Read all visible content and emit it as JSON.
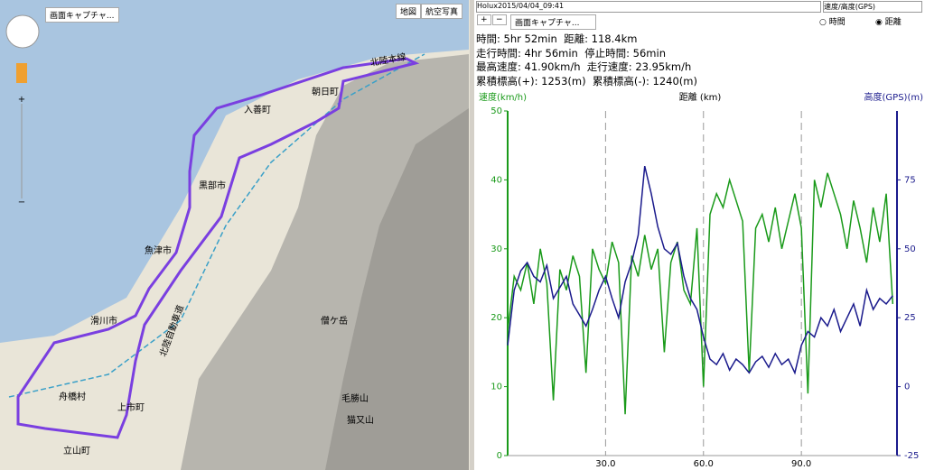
{
  "map": {
    "capture_button": "画面キャプチャ...",
    "map_button": "地図",
    "aerial_button": "航空写真",
    "zoom_in": "+",
    "zoom_out": "−",
    "places": [
      "入善町",
      "朝日町",
      "黒部市",
      "魚津市",
      "滑川市",
      "舟橋村",
      "上市町",
      "立山町",
      "僧ケ岳",
      "毛勝山",
      "猫又山",
      "北陸自動車道",
      "北陸本線"
    ]
  },
  "panel": {
    "file": "Holux2015/04/04_09:41",
    "mode": "速度/高度(GPS)",
    "plus": "+",
    "minus": "−",
    "capture_button": "画面キャプチャ...",
    "radio_time": "時間",
    "radio_distance": "距離",
    "stats": [
      "時間: 5hr 52min  距離: 118.4km",
      "走行時間: 4hr 56min  停止時間: 56min",
      "最高速度: 41.90km/h  走行速度: 23.95km/h",
      "累積標高(+): 1253(m)  累積標高(-): 1240(m)"
    ]
  },
  "chart_data": {
    "type": "line",
    "x_label": "距離 (km)",
    "y_label": "速度(km/h)",
    "y2_label": "高度(GPS)(m)",
    "x": [
      0,
      2,
      4,
      6,
      8,
      10,
      12,
      14,
      16,
      18,
      20,
      22,
      24,
      26,
      28,
      30,
      32,
      34,
      36,
      38,
      40,
      42,
      44,
      46,
      48,
      50,
      52,
      54,
      56,
      58,
      60,
      62,
      64,
      66,
      68,
      70,
      72,
      74,
      76,
      78,
      80,
      82,
      84,
      86,
      88,
      90,
      92,
      94,
      96,
      98,
      100,
      102,
      104,
      106,
      108,
      110,
      112,
      114,
      116,
      118
    ],
    "xlim": [
      0,
      119.3
    ],
    "xticks": [
      {
        "value": 30,
        "label": "30.0"
      },
      {
        "value": 60,
        "label": "60.0"
      },
      {
        "value": 90,
        "label": "90.0"
      }
    ],
    "ylim": [
      0,
      50
    ],
    "yticks": [
      0,
      10,
      20,
      30,
      40,
      50
    ],
    "y2lim": [
      -25,
      100
    ],
    "y2ticks": [
      -25,
      0,
      25,
      50,
      75
    ],
    "grid": "x",
    "series": [
      {
        "color": "#1a9a1a",
        "values": [
          18,
          26,
          24,
          28,
          22,
          30,
          25,
          8,
          27,
          24,
          29,
          26,
          12,
          30,
          27,
          25,
          31,
          28,
          6,
          29,
          26,
          32,
          27,
          30,
          15,
          28,
          31,
          24,
          22,
          33,
          10,
          35,
          38,
          36,
          40,
          37,
          34,
          12,
          33,
          35,
          31,
          36,
          30,
          34,
          38,
          33,
          9,
          40,
          36,
          41,
          38,
          35,
          30,
          37,
          33,
          28,
          36,
          31,
          38,
          22
        ]
      },
      {
        "color": "#1a1a8c",
        "axis": "y2",
        "values": [
          15,
          35,
          42,
          45,
          40,
          38,
          44,
          32,
          36,
          40,
          30,
          26,
          22,
          28,
          35,
          40,
          32,
          25,
          38,
          45,
          55,
          80,
          70,
          58,
          50,
          48,
          52,
          40,
          32,
          28,
          18,
          10,
          8,
          12,
          6,
          10,
          8,
          5,
          9,
          11,
          7,
          12,
          8,
          10,
          5,
          15,
          20,
          18,
          25,
          22,
          28,
          20,
          25,
          30,
          22,
          35,
          28,
          32,
          30,
          33
        ]
      }
    ]
  }
}
